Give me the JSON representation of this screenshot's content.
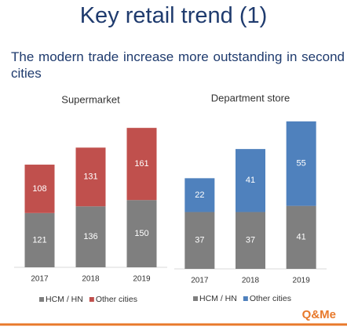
{
  "title": "Key retail trend (1)",
  "subtitle": "The modern trade increase more outstanding in second cities",
  "logo": "Q&Me",
  "chart_data": [
    {
      "type": "stacked_bar",
      "title": "Supermarket",
      "categories": [
        "2017",
        "2018",
        "2019"
      ],
      "series": [
        {
          "name": "HCM / HN",
          "color": "#7f7f7f",
          "values": [
            121,
            136,
            150
          ]
        },
        {
          "name": "Other cities",
          "color": "#c0504d",
          "values": [
            108,
            131,
            161
          ]
        }
      ],
      "ylim": [
        0,
        320
      ]
    },
    {
      "type": "stacked_bar",
      "title": "Department store",
      "categories": [
        "2017",
        "2018",
        "2019"
      ],
      "series": [
        {
          "name": "HCM / HN",
          "color": "#7f7f7f",
          "values": [
            37,
            37,
            41
          ]
        },
        {
          "name": "Other cities",
          "color": "#4f81bd",
          "values": [
            22,
            41,
            55
          ]
        }
      ],
      "ylim": [
        0,
        100
      ]
    }
  ]
}
